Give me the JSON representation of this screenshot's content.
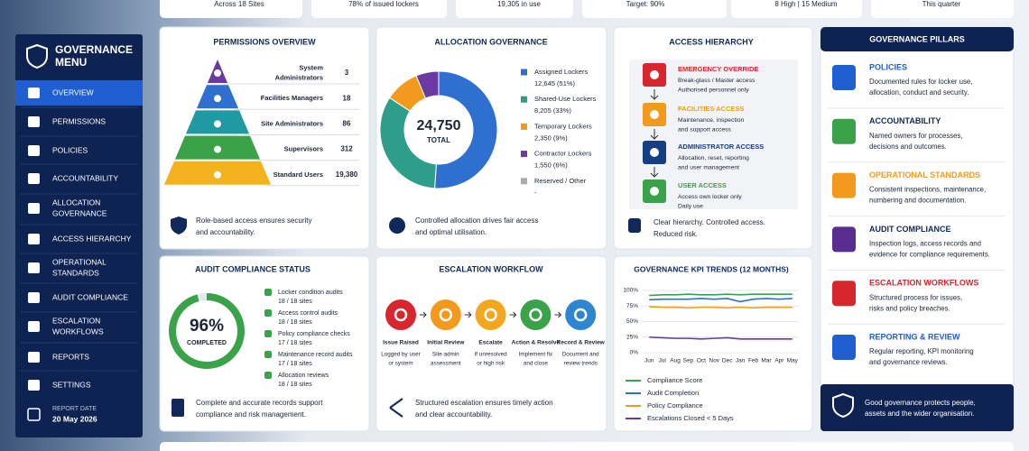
{
  "top_strip": [
    "Across 18 Sites",
    "78% of issued lockers",
    "19,305 in use",
    "Target: 90%",
    "8 High | 15 Medium",
    "This quarter"
  ],
  "sidebar": {
    "title": [
      "GOVERNANCE",
      "MENU"
    ],
    "items": [
      [
        "OVERVIEW"
      ],
      [
        "PERMISSIONS"
      ],
      [
        "POLICIES"
      ],
      [
        "ACCOUNTABILITY"
      ],
      [
        "ALLOCATION",
        "GOVERNANCE"
      ],
      [
        "ACCESS HIERARCHY"
      ],
      [
        "OPERATIONAL",
        "STANDARDS"
      ],
      [
        "AUDIT COMPLIANCE"
      ],
      [
        "ESCALATION",
        "WORKFLOWS"
      ],
      [
        "REPORTS"
      ],
      [
        "SETTINGS"
      ]
    ],
    "report_date_label": "REPORT DATE",
    "report_date": "20 May 2026"
  },
  "permissions": {
    "title": "PERMISSIONS OVERVIEW",
    "rows": [
      {
        "role": [
          "System",
          "Administrators"
        ],
        "count": 3
      },
      {
        "role": [
          "Facilities Managers"
        ],
        "count": 18
      },
      {
        "role": [
          "Site Administrators"
        ],
        "count": 86
      },
      {
        "role": [
          "Supervisors"
        ],
        "count": 312
      },
      {
        "role": [
          "Standard Users"
        ],
        "count": "19,380"
      }
    ],
    "footer": [
      "Role-based access ensures security",
      "and accountability."
    ]
  },
  "allocation": {
    "footer": [
      "Controlled allocation drives fair access",
      "and optimal utilisation."
    ]
  },
  "access": {
    "title": "ACCESS HIERARCHY",
    "levels": [
      {
        "title": "EMERGENCY OVERRIDE",
        "lines": [
          "Break-glass / Master access",
          "Authorised personnel only"
        ]
      },
      {
        "title": "FACILITIES ACCESS",
        "lines": [
          "Maintenance, inspection",
          "and support access"
        ]
      },
      {
        "title": "ADMINISTRATOR ACCESS",
        "lines": [
          "Allocation, reset, reporting",
          "and user management"
        ]
      },
      {
        "title": "USER ACCESS",
        "lines": [
          "Access own locker only",
          "Daily use"
        ]
      }
    ],
    "footer": [
      "Clear hierarchy. Controlled access.",
      "Reduced risk."
    ]
  },
  "audit": {
    "title": "AUDIT COMPLIANCE STATUS",
    "items": [
      {
        "name": "Locker condition audits",
        "sites": "18 / 18 sites"
      },
      {
        "name": "Access control audits",
        "sites": "18 / 18 sites"
      },
      {
        "name": "Policy compliance checks",
        "sites": "17 / 18 sites"
      },
      {
        "name": "Maintenance record audits",
        "sites": "17 / 18 sites"
      },
      {
        "name": "Allocation reviews",
        "sites": "18 / 18 sites"
      }
    ],
    "footer": [
      "Complete and accurate records support",
      "compliance and risk management."
    ]
  },
  "escalation": {
    "title": "ESCALATION WORKFLOW",
    "steps": [
      {
        "title": "Issue Raised",
        "lines": [
          "Logged by user",
          "or system"
        ]
      },
      {
        "title": "Initial Review",
        "lines": [
          "Site admin",
          "assessment"
        ]
      },
      {
        "title": "Escalate",
        "lines": [
          "If unresolved",
          "or high risk"
        ]
      },
      {
        "title": "Action & Resolve",
        "lines": [
          "Implement fix",
          "and close"
        ]
      },
      {
        "title": "Record & Review",
        "lines": [
          "Document and",
          "review trends"
        ]
      }
    ],
    "footer": [
      "Structured escalation ensures timely action",
      "and clear accountability."
    ]
  },
  "pillars": {
    "title": "GOVERNANCE PILLARS",
    "items": [
      {
        "title": "POLICIES",
        "lines": [
          "Documented rules for locker use,",
          "allocation, conduct and security."
        ]
      },
      {
        "title": "ACCOUNTABILITY",
        "lines": [
          "Named owners for processes,",
          "decisions and outcomes."
        ]
      },
      {
        "title": "OPERATIONAL STANDARDS",
        "lines": [
          "Consistent inspections, maintenance,",
          "numbering and documentation."
        ]
      },
      {
        "title": "AUDIT COMPLIANCE",
        "lines": [
          "Inspection logs, access records and",
          "evidence for compliance requirements."
        ]
      },
      {
        "title": "ESCALATION WORKFLOWS",
        "lines": [
          "Structured process for issues,",
          "risks and policy breaches."
        ]
      },
      {
        "title": "REPORTING & REVIEW",
        "lines": [
          "Regular reporting, KPI monitoring",
          "and governance reviews."
        ]
      }
    ],
    "footer": [
      "Good governance protects people,",
      "assets and the wider organisation."
    ]
  },
  "chart_data": [
    {
      "type": "pie",
      "title": "ALLOCATION GOVERNANCE",
      "categories": [
        "Assigned Lockers",
        "Shared-Use Lockers",
        "Temporary Lockers",
        "Contractor Lockers",
        "Reserved / Other"
      ],
      "values": [
        12645,
        8205,
        2350,
        1550,
        null
      ],
      "value_labels": [
        "12,645 (51%)",
        "8,205 (33%)",
        "2,350 (9%)",
        "1,550 (6%)",
        "-"
      ],
      "colors": [
        "#2f6fd0",
        "#2e9e8a",
        "#f39a1e",
        "#6a3aa2",
        "#a8adb5"
      ],
      "center_value": "24,750",
      "center_label": "TOTAL"
    },
    {
      "type": "line",
      "title": "GOVERNANCE KPI TRENDS (12 MONTHS)",
      "categories": [
        "Jun",
        "Jul",
        "Aug",
        "Sep",
        "Oct",
        "Nov",
        "Dec",
        "Jan",
        "Feb",
        "Mar",
        "Apr",
        "May"
      ],
      "ylim": [
        0,
        100
      ],
      "yticks": [
        {
          "value": 0,
          "label": "0%"
        },
        {
          "value": 25,
          "label": "25%"
        },
        {
          "value": 50,
          "label": "50%"
        },
        {
          "value": 75,
          "label": "75%"
        },
        {
          "value": 100,
          "label": "100%"
        }
      ],
      "grid": true,
      "series": [
        {
          "name": "Compliance Score",
          "color": "#3aa34a",
          "values": [
            92,
            93,
            93,
            94,
            93,
            93,
            94,
            93,
            94,
            94,
            94,
            94
          ]
        },
        {
          "name": "Audit Completion",
          "color": "#2f6fd0",
          "values": [
            85,
            86,
            86,
            86,
            87,
            86,
            87,
            82,
            86,
            87,
            86,
            87
          ]
        },
        {
          "name": "Policy Compliance",
          "color": "#f39a1e",
          "values": [
            74,
            73,
            73,
            72,
            73,
            73,
            72,
            73,
            72,
            73,
            73,
            73
          ]
        },
        {
          "name": "Escalations Closed < 5 Days",
          "color": "#6a3aa2",
          "values": [
            25,
            24,
            23,
            23,
            22,
            23,
            24,
            22,
            22,
            22,
            22,
            22
          ]
        }
      ]
    },
    {
      "type": "gauge",
      "value": 96,
      "value_label": "96%",
      "caption": "COMPLETED",
      "ylim": [
        0,
        100
      ],
      "color": "#3aa34a"
    }
  ]
}
